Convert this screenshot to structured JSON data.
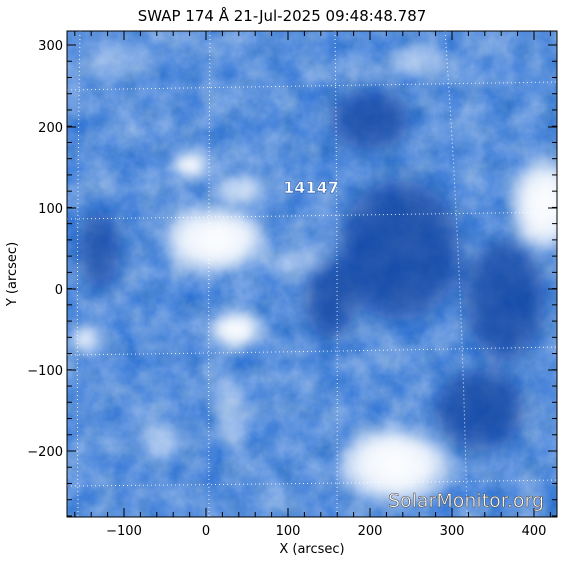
{
  "title": "SWAP 174 Å 21-Jul-2025 09:48:48.787",
  "xlabel": "X (arcsec)",
  "ylabel": "Y (arcsec)",
  "x_ticks": [
    "−100",
    "0",
    "100",
    "200",
    "300",
    "400"
  ],
  "y_ticks": [
    "300",
    "200",
    "100",
    "0",
    "−100",
    "−200"
  ],
  "region_label": "14147",
  "watermark": "SolarMonitor.org",
  "colors": {
    "deep": "#0a3f9e",
    "mid": "#2e73d6",
    "light": "#8fbcf2",
    "white": "#ffffff",
    "grid": "#ffffff"
  }
}
